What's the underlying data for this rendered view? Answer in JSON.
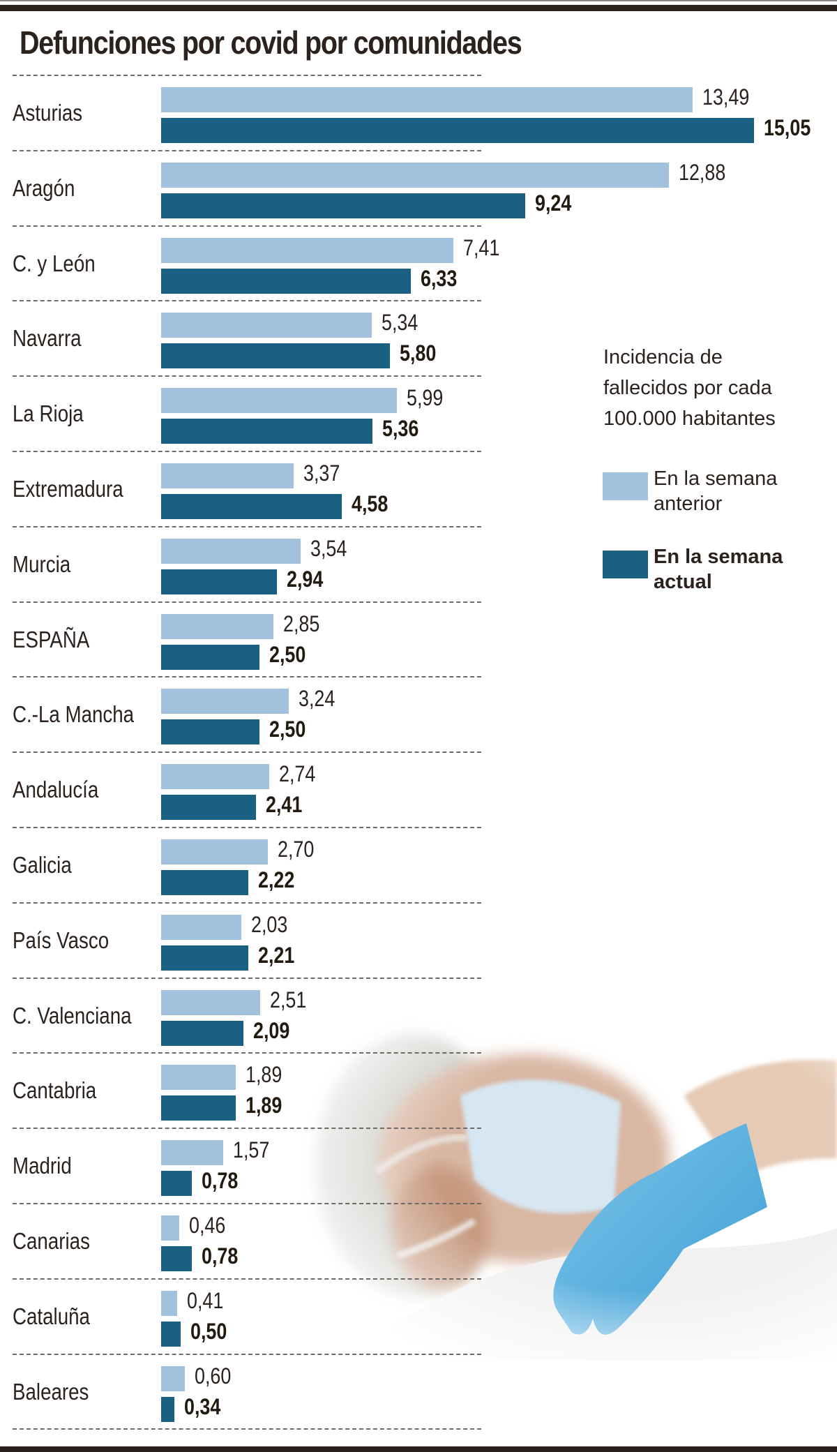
{
  "title": "Defunciones por covid por comunidades",
  "legend": {
    "title_lines": [
      "Incidencia de",
      "fallecidos por cada",
      "100.000 habitantes"
    ],
    "previous_week": "En la semana anterior",
    "current_week": "En la semana actual"
  },
  "colors": {
    "previous_week": "#a1c1dd",
    "current_week": "#1a6083",
    "rules": "#2b201c"
  },
  "rows": [
    {
      "label": "Asturias",
      "prev": "13,49",
      "curr": "15,05"
    },
    {
      "label": "Aragón",
      "prev": "12,88",
      "curr": "9,24"
    },
    {
      "label": "C. y León",
      "prev": "7,41",
      "curr": "6,33"
    },
    {
      "label": "Navarra",
      "prev": "5,34",
      "curr": "5,80"
    },
    {
      "label": "La Rioja",
      "prev": "5,99",
      "curr": "5,36"
    },
    {
      "label": "Extremadura",
      "prev": "3,37",
      "curr": "4,58"
    },
    {
      "label": "Murcia",
      "prev": "3,54",
      "curr": "2,94"
    },
    {
      "label": "ESPAÑA",
      "prev": "2,85",
      "curr": "2,50"
    },
    {
      "label": "C.-La Mancha",
      "prev": "3,24",
      "curr": "2,50"
    },
    {
      "label": "Andalucía",
      "prev": "2,74",
      "curr": "2,41"
    },
    {
      "label": "Galicia",
      "prev": "2,70",
      "curr": "2,22"
    },
    {
      "label": "País Vasco",
      "prev": "2,03",
      "curr": "2,21"
    },
    {
      "label": "C. Valenciana",
      "prev": "2,51",
      "curr": "2,09"
    },
    {
      "label": "Cantabria",
      "prev": "1,89",
      "curr": "1,89"
    },
    {
      "label": "Madrid",
      "prev": "1,57",
      "curr": "0,78"
    },
    {
      "label": "Canarias",
      "prev": "0,46",
      "curr": "0,78"
    },
    {
      "label": "Cataluña",
      "prev": "0,41",
      "curr": "0,50"
    },
    {
      "label": "Baleares",
      "prev": "0,60",
      "curr": "0,34"
    }
  ],
  "chart_data": {
    "type": "bar",
    "orientation": "horizontal",
    "title": "Defunciones por covid por comunidades",
    "subtitle": "Incidencia de fallecidos por cada 100.000 habitantes",
    "xlabel": "",
    "ylabel": "",
    "grid": false,
    "legend_position": "right",
    "categories": [
      "Asturias",
      "Aragón",
      "C. y León",
      "Navarra",
      "La Rioja",
      "Extremadura",
      "Murcia",
      "ESPAÑA",
      "C.-La Mancha",
      "Andalucía",
      "Galicia",
      "País Vasco",
      "C. Valenciana",
      "Cantabria",
      "Madrid",
      "Canarias",
      "Cataluña",
      "Baleares"
    ],
    "series": [
      {
        "name": "En la semana anterior",
        "color": "#a1c1dd",
        "values": [
          13.49,
          12.88,
          7.41,
          5.34,
          5.99,
          3.37,
          3.54,
          2.85,
          3.24,
          2.74,
          2.7,
          2.03,
          2.51,
          1.89,
          1.57,
          0.46,
          0.41,
          0.6
        ]
      },
      {
        "name": "En la semana actual",
        "color": "#1a6083",
        "values": [
          15.05,
          9.24,
          6.33,
          5.8,
          5.36,
          4.58,
          2.94,
          2.5,
          2.5,
          2.41,
          2.22,
          2.21,
          2.09,
          1.89,
          0.78,
          0.78,
          0.5,
          0.34
        ]
      }
    ],
    "xlim": [
      0,
      16
    ]
  }
}
